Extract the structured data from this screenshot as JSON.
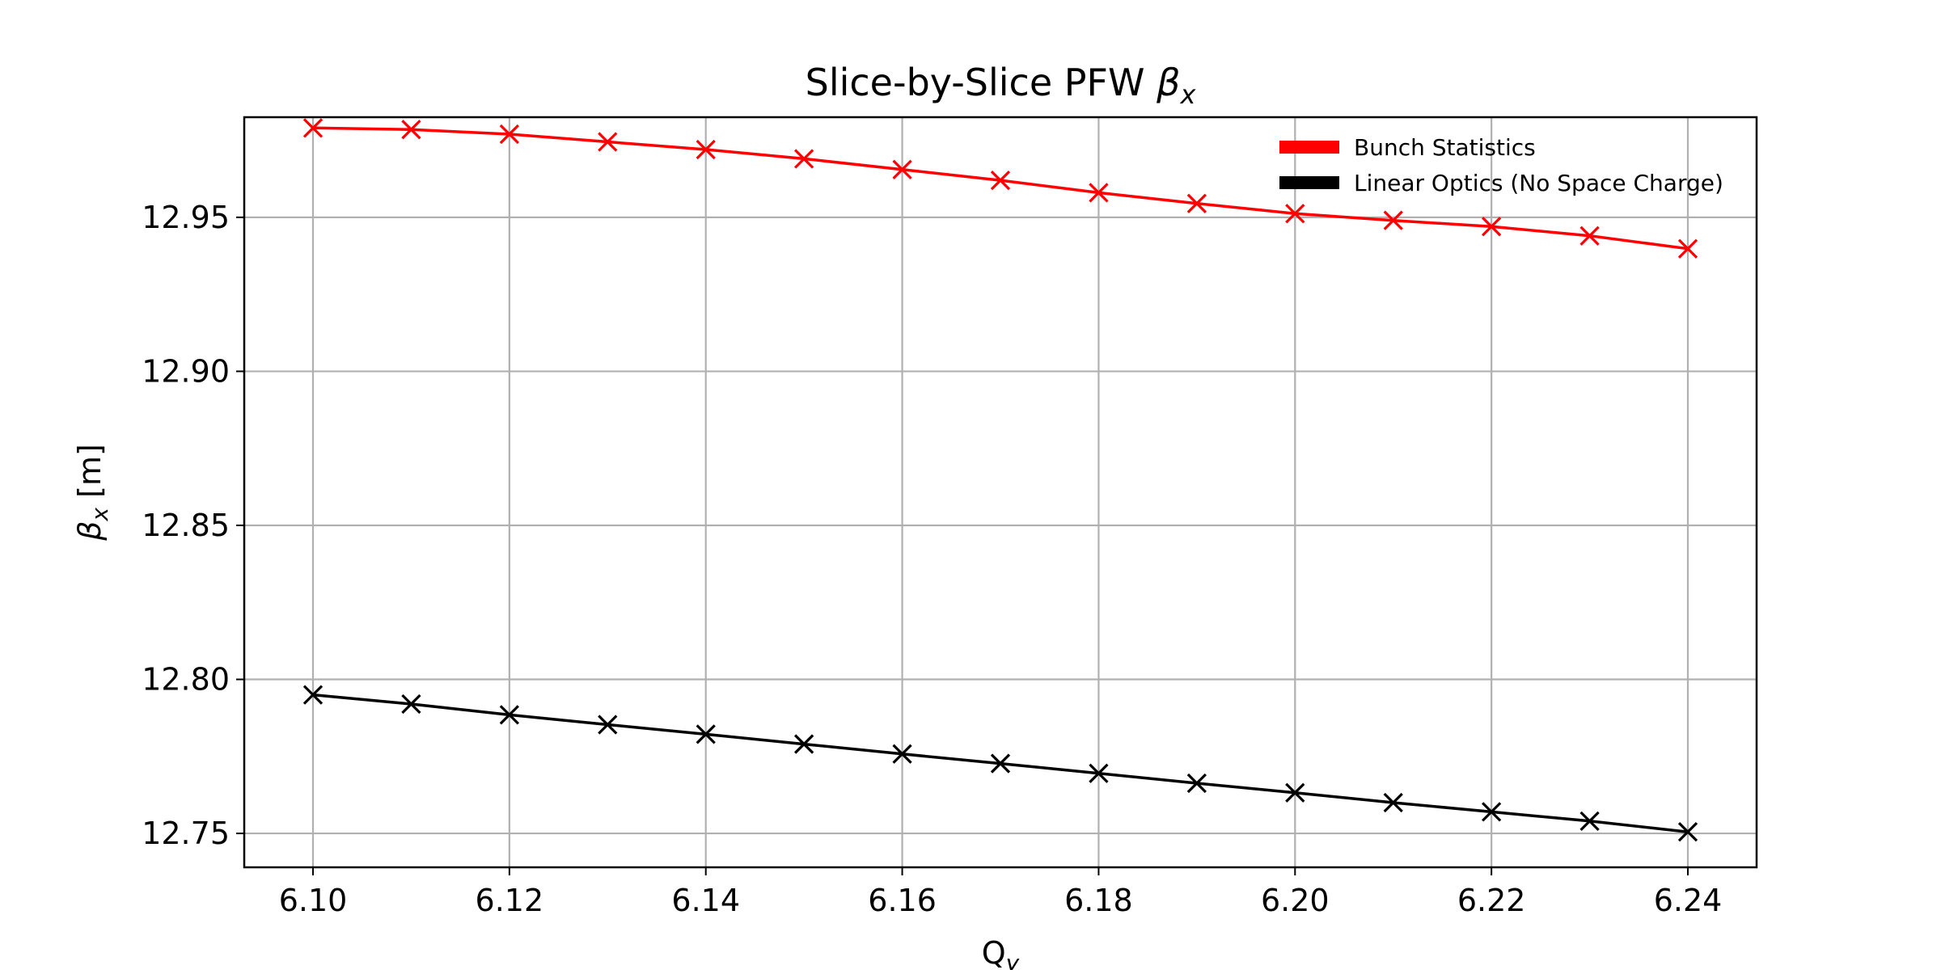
{
  "chart_data": {
    "type": "line",
    "title": "Slice-by-Slice PFW βx",
    "title_parts": {
      "main": "Slice-by-Slice PFW ",
      "symbol": "β",
      "subscript": "x"
    },
    "xlabel_parts": {
      "main": "Q",
      "subscript": "y"
    },
    "ylabel_parts": {
      "symbol": "β",
      "subscript": "x",
      "suffix": " [m]"
    },
    "x": [
      6.1,
      6.11,
      6.12,
      6.13,
      6.14,
      6.15,
      6.16,
      6.17,
      6.18,
      6.19,
      6.2,
      6.21,
      6.22,
      6.23,
      6.24
    ],
    "xlim": [
      6.093,
      6.247
    ],
    "ylim": [
      12.739,
      12.9825
    ],
    "xticks": [
      "6.10",
      "6.12",
      "6.14",
      "6.16",
      "6.18",
      "6.20",
      "6.22",
      "6.24"
    ],
    "yticks": [
      "12.75",
      "12.80",
      "12.85",
      "12.90",
      "12.95"
    ],
    "grid": true,
    "legend_position": "top-right",
    "series": [
      {
        "name": "Bunch Statistics",
        "color": "#ff0000",
        "marker": "x",
        "values": [
          12.979,
          12.9785,
          12.977,
          12.9745,
          12.972,
          12.969,
          12.9655,
          12.962,
          12.958,
          12.9545,
          12.9512,
          12.949,
          12.947,
          12.944,
          12.9398
        ]
      },
      {
        "name": "Linear Optics (No Space Charge)",
        "color": "#000000",
        "marker": "x",
        "values": [
          12.795,
          12.792,
          12.7885,
          12.7853,
          12.7822,
          12.779,
          12.7758,
          12.7727,
          12.7695,
          12.7663,
          12.7632,
          12.76,
          12.757,
          12.754,
          12.7505
        ]
      }
    ]
  }
}
